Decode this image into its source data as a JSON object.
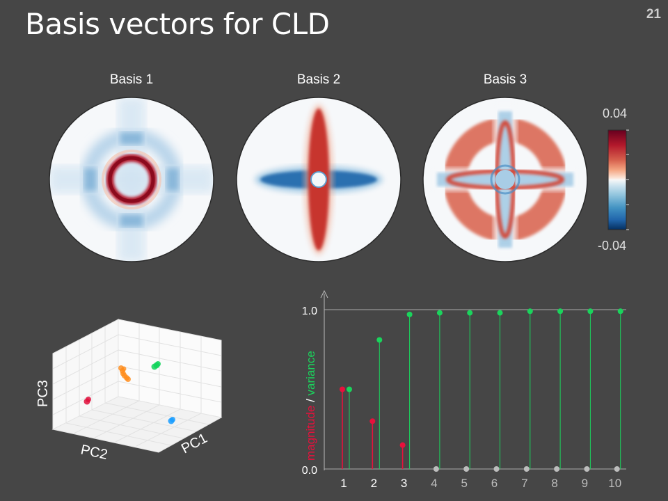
{
  "slide": {
    "title": "Basis vectors for CLD",
    "page_number": "21"
  },
  "basis_panels": [
    {
      "label": "Basis 1"
    },
    {
      "label": "Basis 2"
    },
    {
      "label": "Basis 3"
    }
  ],
  "colorbar": {
    "max_label": "0.04",
    "min_label": "-0.04",
    "colormap": "RdBu_r"
  },
  "pca_plot": {
    "axis_labels": {
      "pc1": "PC1",
      "pc2": "PC2",
      "pc3": "PC3"
    },
    "clusters": [
      {
        "color": "#ff8c1a"
      },
      {
        "color": "#11d45a"
      },
      {
        "color": "#e0103c"
      },
      {
        "color": "#1a9dff"
      }
    ]
  },
  "chart_data": {
    "type": "stem",
    "categories": [
      "1",
      "2",
      "3",
      "4",
      "5",
      "6",
      "7",
      "8",
      "9",
      "10"
    ],
    "ylabel_parts": [
      {
        "text": "magnitude",
        "color": "#e8103c"
      },
      {
        "text": " / ",
        "color": "#ffffff"
      },
      {
        "text": "variance",
        "color": "#1ad45c"
      }
    ],
    "ylim": [
      0,
      1.0
    ],
    "yticks": [
      "0.0",
      "1.0"
    ],
    "series": [
      {
        "values": [
          0.5,
          0.3,
          0.15,
          0,
          0,
          0,
          0,
          0,
          0,
          0
        ],
        "color": "#e8103c",
        "zero_color": "#bdbdbd"
      },
      {
        "values": [
          0.5,
          0.81,
          0.97,
          0.98,
          0.98,
          0.98,
          0.99,
          0.99,
          0.99,
          0.99
        ],
        "color": "#1ad45c"
      }
    ],
    "active_tick_color": "#ffffff",
    "inactive_tick_color": "#bdbdbd"
  }
}
